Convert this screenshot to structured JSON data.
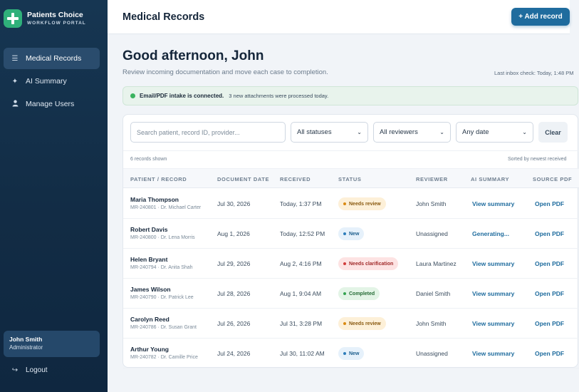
{
  "brand": {
    "name": "Patients Choice",
    "subtitle": "WORKFLOW PORTAL",
    "logo_icon": "plus-cross-icon",
    "logo_color": "#2fb07a"
  },
  "sidebar": {
    "items": [
      {
        "label": "Medical Records",
        "icon": "list-icon",
        "active": true
      },
      {
        "label": "AI Summary",
        "icon": "sparkle-icon",
        "active": false
      },
      {
        "label": "Manage Users",
        "icon": "user-icon",
        "active": false
      }
    ],
    "user": {
      "name": "John Smith",
      "role": "Administrator"
    },
    "logout_label": "Logout"
  },
  "header": {
    "title": "Medical Records",
    "add_button": "+ Add record"
  },
  "greeting": {
    "title": "Good afternoon, John",
    "subtitle": "Review incoming documentation and move each case to completion.",
    "inbox_check": "Last inbox check: Today, 1:48 PM"
  },
  "banner": {
    "strong": "Email/PDF intake is connected.",
    "text": "3 new attachments were processed today."
  },
  "filters": {
    "search_placeholder": "Search patient, record ID, provider...",
    "status": "All statuses",
    "reviewer": "All reviewers",
    "date": "Any date",
    "clear": "Clear"
  },
  "meta": {
    "count": "6 records shown",
    "sort": "Sorted by newest received"
  },
  "table": {
    "headers": [
      "PATIENT / RECORD",
      "DOCUMENT DATE",
      "RECEIVED",
      "STATUS",
      "REVIEWER",
      "AI SUMMARY",
      "SOURCE PDF"
    ],
    "rows": [
      {
        "name": "Maria Thompson",
        "record": "MR-240801 · Dr. Michael Carter",
        "doc_date": "Jul 30, 2026",
        "received": "Today, 1:37 PM",
        "status": "Needs review",
        "status_kind": "review",
        "reviewer": "John Smith",
        "summary": "View summary",
        "pdf": "Open PDF"
      },
      {
        "name": "Robert Davis",
        "record": "MR-240800 · Dr. Lena Morris",
        "doc_date": "Aug 1, 2026",
        "received": "Today, 12:52 PM",
        "status": "New",
        "status_kind": "new",
        "reviewer": "Unassigned",
        "summary": "Generating...",
        "pdf": "Open PDF"
      },
      {
        "name": "Helen Bryant",
        "record": "MR-240794 · Dr. Anita Shah",
        "doc_date": "Jul 29, 2026",
        "received": "Aug 2, 4:16 PM",
        "status": "Needs clarification",
        "status_kind": "clar",
        "reviewer": "Laura Martinez",
        "summary": "View summary",
        "pdf": "Open PDF"
      },
      {
        "name": "James Wilson",
        "record": "MR-240790 · Dr. Patrick Lee",
        "doc_date": "Jul 28, 2026",
        "received": "Aug 1, 9:04 AM",
        "status": "Completed",
        "status_kind": "done",
        "reviewer": "Daniel Smith",
        "summary": "View summary",
        "pdf": "Open PDF"
      },
      {
        "name": "Carolyn Reed",
        "record": "MR-240786 · Dr. Susan Grant",
        "doc_date": "Jul 26, 2026",
        "received": "Jul 31, 3:28 PM",
        "status": "Needs review",
        "status_kind": "review",
        "reviewer": "John Smith",
        "summary": "View summary",
        "pdf": "Open PDF"
      },
      {
        "name": "Arthur Young",
        "record": "MR-240782 · Dr. Camille Price",
        "doc_date": "Jul 24, 2026",
        "received": "Jul 30, 11:02 AM",
        "status": "New",
        "status_kind": "new",
        "reviewer": "Unassigned",
        "summary": "View summary",
        "pdf": "Open PDF"
      }
    ]
  }
}
